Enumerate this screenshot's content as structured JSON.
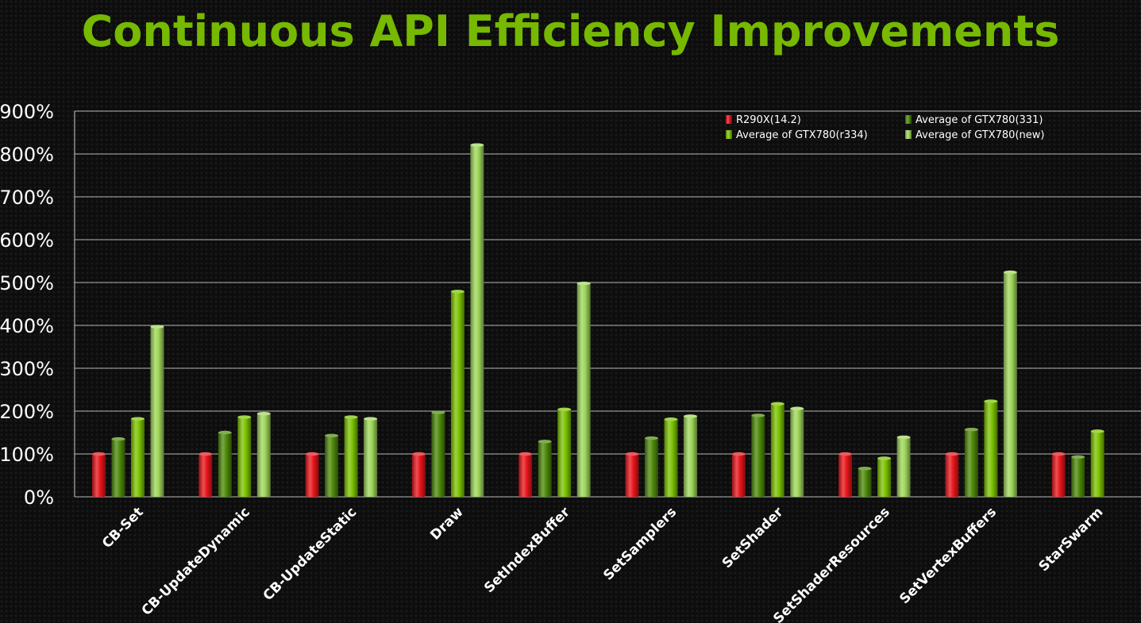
{
  "title": "Continuous API Efficiency Improvements",
  "chart_data": {
    "type": "bar",
    "title": "Continuous API Efficiency Improvements",
    "categories": [
      "CB-Set",
      "CB-UpdateDynamic",
      "CB-UpdateStatic",
      "Draw",
      "SetIndexBuffer",
      "SetSamplers",
      "SetShader",
      "SetShaderResources",
      "SetVertexBuffers",
      "StarSwarm"
    ],
    "series": [
      {
        "name": "R290X(14.2)",
        "color": "#e8151b",
        "values": [
          100,
          100,
          100,
          100,
          100,
          100,
          100,
          100,
          100,
          100
        ]
      },
      {
        "name": "Average of GTX780(331)",
        "color": "#4e8a0a",
        "values": [
          135,
          150,
          143,
          197,
          129,
          137,
          190,
          66,
          157,
          93
        ]
      },
      {
        "name": "Average of GTX780(r334)",
        "color": "#7cc300",
        "values": [
          182,
          186,
          186,
          479,
          204,
          181,
          217,
          90,
          223,
          153
        ]
      },
      {
        "name": "Average of GTX780(new)",
        "color": "#9fd65a",
        "values": [
          397,
          194,
          182,
          821,
          498,
          188,
          206,
          139,
          524,
          null
        ]
      }
    ],
    "y_ticks": [
      "0%",
      "100%",
      "200%",
      "300%",
      "400%",
      "500%",
      "600%",
      "700%",
      "800%",
      "900%"
    ],
    "ylim": [
      0,
      900
    ],
    "xlabel": "",
    "ylabel": "",
    "grid": true,
    "legend_position": "top-right"
  }
}
